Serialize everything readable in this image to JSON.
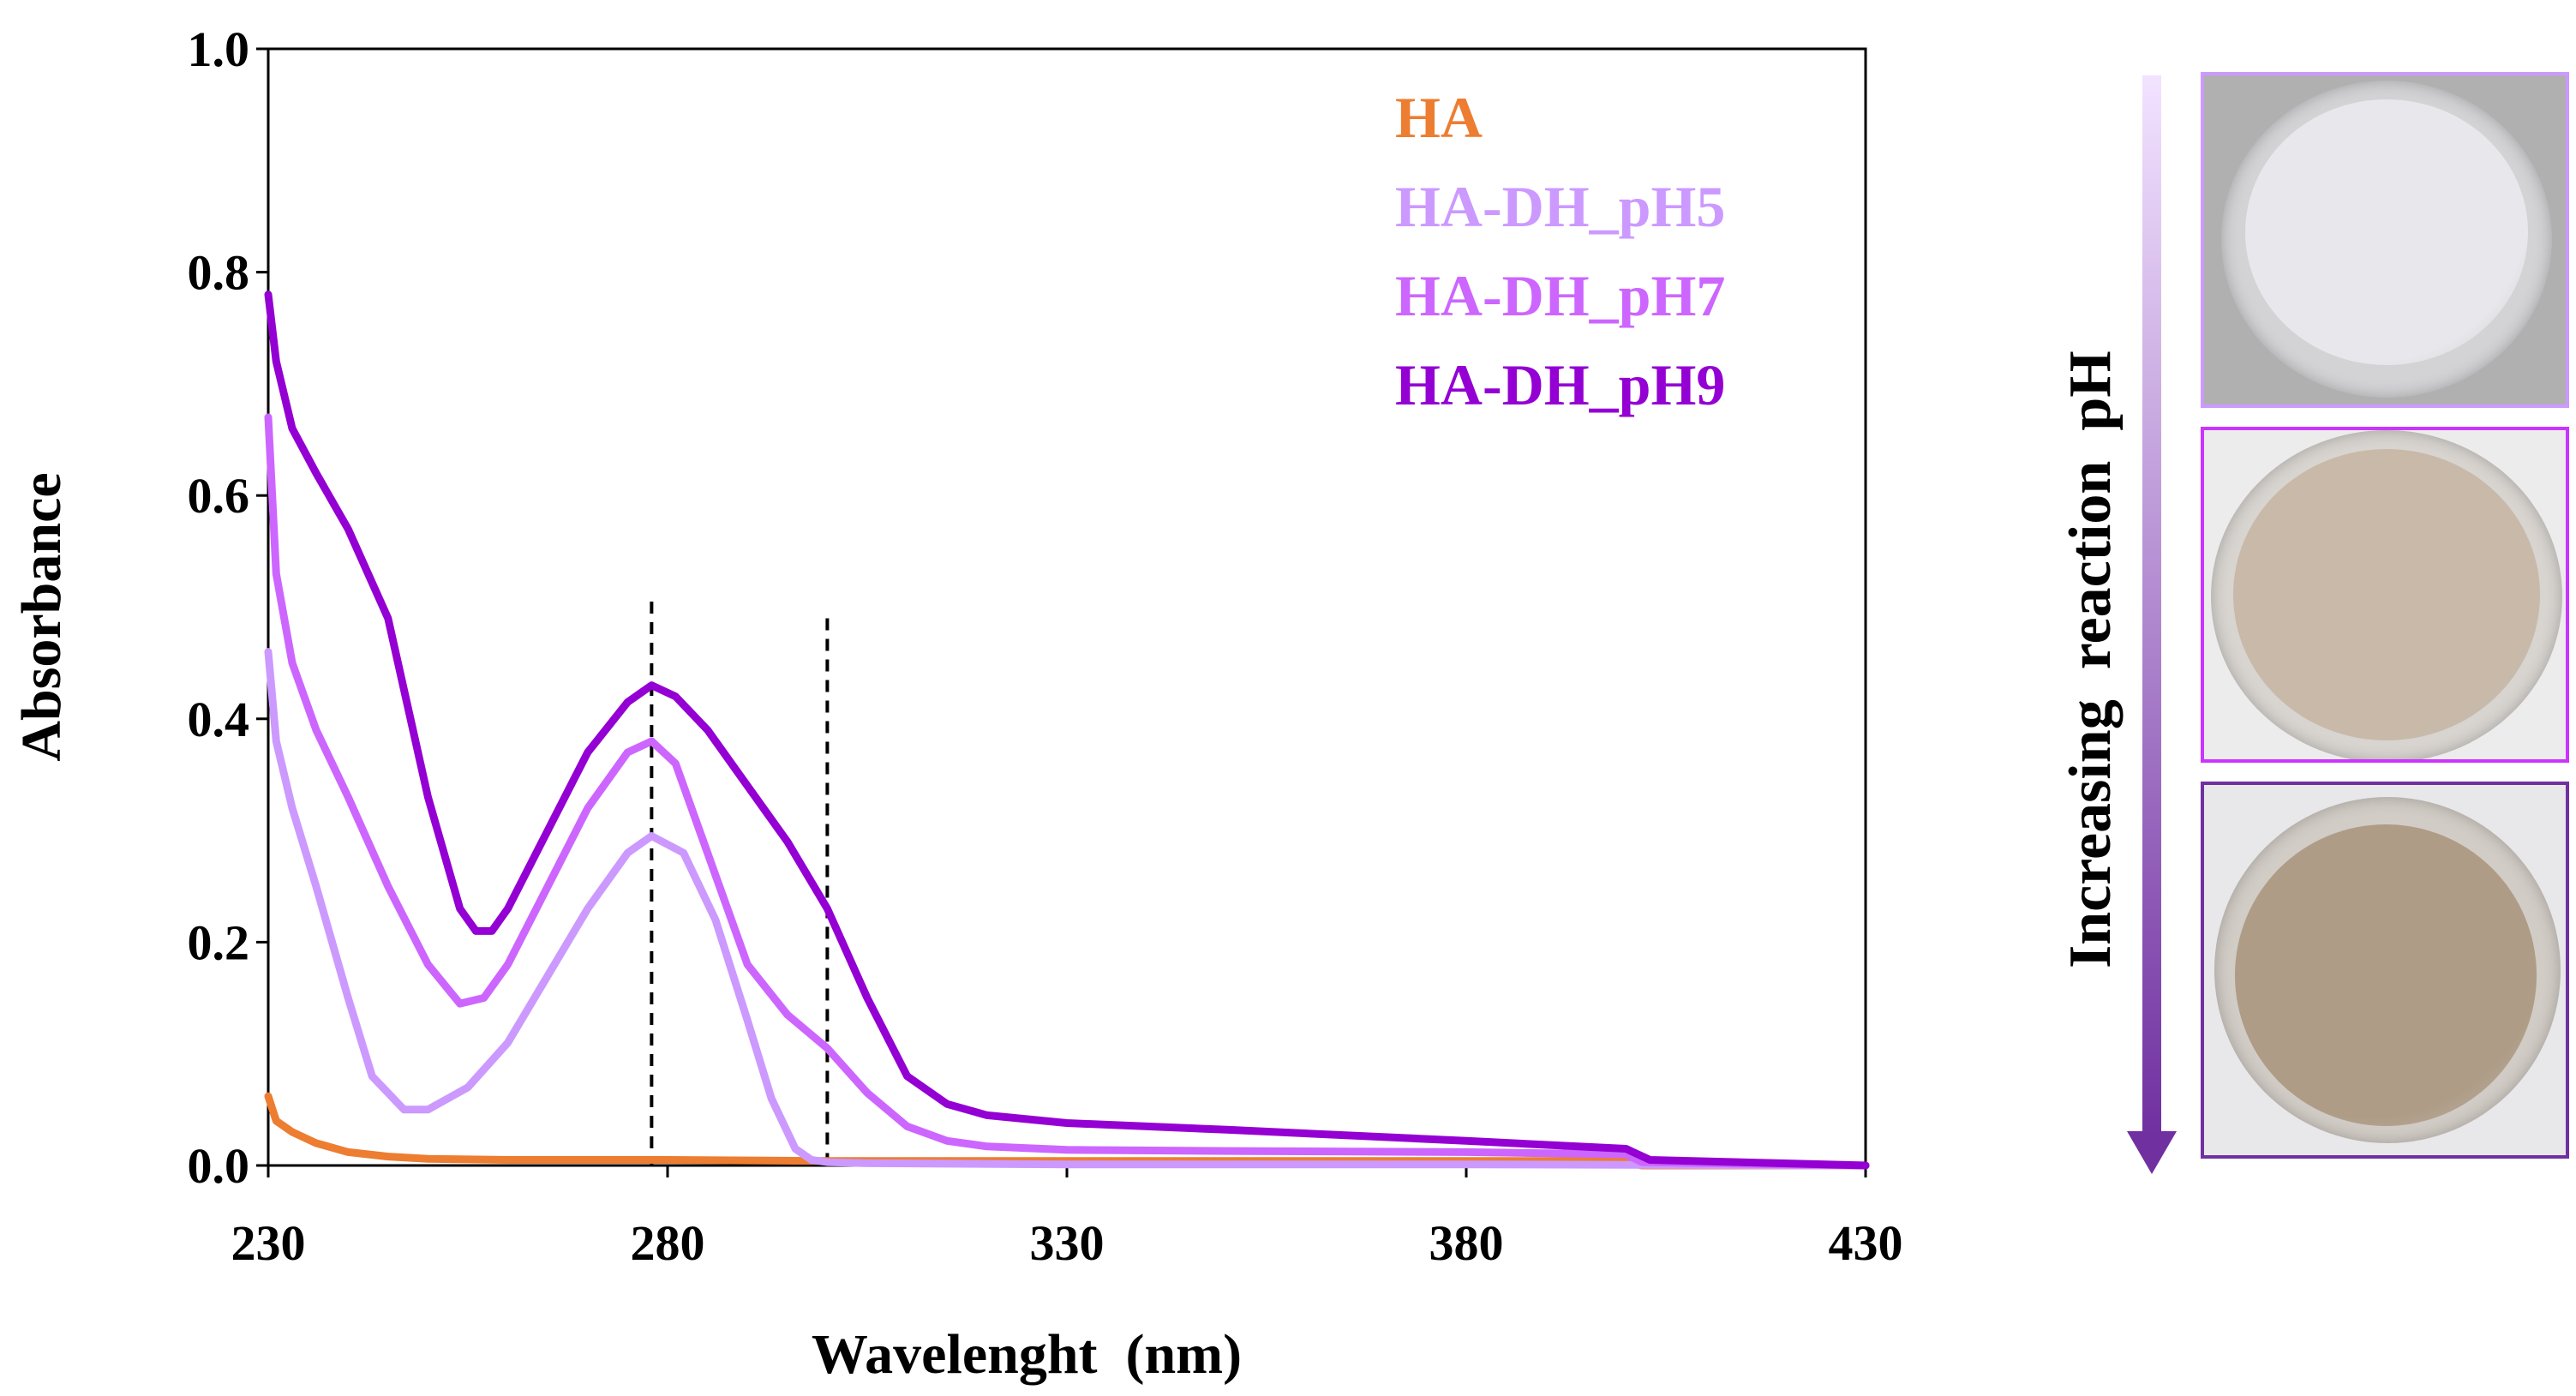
{
  "chart_data": {
    "type": "line",
    "xlabel": "Wavelenght  (nm)",
    "ylabel": "Absorbance",
    "xlim": [
      230,
      430
    ],
    "ylim": [
      0,
      1.0
    ],
    "xticks": [
      230,
      280,
      330,
      380,
      430
    ],
    "yticks": [
      0.0,
      0.2,
      0.4,
      0.6,
      0.8,
      1.0
    ],
    "xtick_labels": [
      "230",
      "280",
      "330",
      "380",
      "430"
    ],
    "ytick_labels": [
      "0.0",
      "0.2",
      "0.4",
      "0.6",
      "0.8",
      "1.0"
    ],
    "vlines": [
      278,
      300
    ],
    "legend_position": "top-right",
    "series": [
      {
        "name": "HA",
        "color": "#ED7D31",
        "x": [
          230,
          231,
          233,
          236,
          240,
          245,
          250,
          260,
          280,
          300,
          330,
          380,
          400,
          402,
          430
        ],
        "y": [
          0.062,
          0.04,
          0.03,
          0.02,
          0.012,
          0.008,
          0.006,
          0.005,
          0.005,
          0.004,
          0.004,
          0.004,
          0.004,
          0.0,
          0.0
        ]
      },
      {
        "name": "HA-DH_pH5",
        "color": "#CC99FF",
        "x": [
          230,
          231,
          233,
          236,
          240,
          243,
          247,
          250,
          255,
          260,
          265,
          270,
          275,
          278,
          282,
          286,
          290,
          293,
          296,
          298,
          300,
          305,
          330,
          380,
          430
        ],
        "y": [
          0.46,
          0.38,
          0.32,
          0.25,
          0.15,
          0.08,
          0.05,
          0.05,
          0.07,
          0.11,
          0.17,
          0.23,
          0.28,
          0.295,
          0.28,
          0.22,
          0.13,
          0.06,
          0.015,
          0.005,
          0.003,
          0.002,
          0.001,
          0.001,
          0.0
        ]
      },
      {
        "name": "HA-DH_pH7",
        "color": "#CC66FF",
        "x": [
          230,
          231,
          233,
          236,
          240,
          245,
          250,
          254,
          257,
          260,
          265,
          270,
          275,
          278,
          281,
          285,
          290,
          295,
          300,
          305,
          310,
          315,
          320,
          330,
          350,
          380,
          400,
          402,
          430
        ],
        "y": [
          0.67,
          0.53,
          0.45,
          0.39,
          0.33,
          0.25,
          0.18,
          0.145,
          0.15,
          0.18,
          0.25,
          0.32,
          0.37,
          0.38,
          0.36,
          0.28,
          0.18,
          0.135,
          0.105,
          0.065,
          0.035,
          0.022,
          0.017,
          0.014,
          0.013,
          0.012,
          0.01,
          0.003,
          0.0
        ]
      },
      {
        "name": "HA-DH_pH9",
        "color": "#9400D3",
        "x": [
          230,
          231,
          233,
          236,
          240,
          245,
          250,
          254,
          256,
          258,
          260,
          265,
          270,
          275,
          278,
          281,
          285,
          290,
          295,
          300,
          305,
          310,
          315,
          320,
          330,
          350,
          380,
          400,
          403,
          430
        ],
        "y": [
          0.78,
          0.72,
          0.66,
          0.62,
          0.57,
          0.49,
          0.33,
          0.23,
          0.21,
          0.21,
          0.23,
          0.3,
          0.37,
          0.415,
          0.43,
          0.42,
          0.39,
          0.34,
          0.29,
          0.23,
          0.15,
          0.08,
          0.055,
          0.045,
          0.038,
          0.032,
          0.022,
          0.015,
          0.005,
          0.0
        ]
      }
    ]
  },
  "side_panel": {
    "arrow_label": "Increasing  reaction  pH",
    "arrow_color_top": "#F2E3FF",
    "arrow_color_bottom": "#7030A0",
    "photos": [
      {
        "name": "pH5",
        "border_color": "#CC99FF",
        "background": "#B0B0B0",
        "dish": "#D3D3D6",
        "powder": "#E8E8EC"
      },
      {
        "name": "pH7",
        "border_color": "#CC33FF",
        "background": "#ECECEC",
        "dish": "#D8D4D0",
        "powder": "#C8B9A8"
      },
      {
        "name": "pH9",
        "border_color": "#7030A0",
        "background": "#E8E8EA",
        "dish": "#D2CCC6",
        "powder": "#AE9C86"
      }
    ]
  }
}
